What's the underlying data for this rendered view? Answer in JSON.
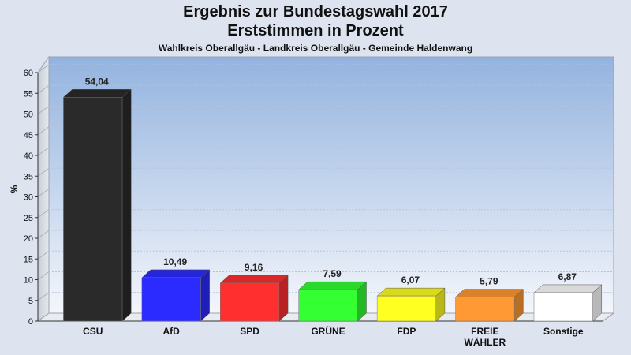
{
  "chart_data": {
    "type": "bar",
    "title": "Ergebnis zur Bundestagswahl 2017",
    "subtitle_line": "Erststimmen in Prozent",
    "subtitle": "Wahlkreis Oberallgäu - Landkreis Oberallgäu - Gemeinde Haldenwang",
    "ylabel": "%",
    "ylim": [
      0,
      60
    ],
    "yticks": [
      0,
      5,
      10,
      15,
      20,
      25,
      30,
      35,
      40,
      45,
      50,
      55,
      60
    ],
    "categories": [
      [
        "CSU"
      ],
      [
        "AfD"
      ],
      [
        "SPD"
      ],
      [
        "GRÜNE"
      ],
      [
        "FDP"
      ],
      [
        "FREIE",
        "WÄHLER"
      ],
      [
        "Sonstige"
      ]
    ],
    "values": [
      54.04,
      10.49,
      9.16,
      7.59,
      6.07,
      5.79,
      6.87
    ],
    "value_labels": [
      "54,04",
      "10,49",
      "9,16",
      "7,59",
      "6,07",
      "5,79",
      "6,87"
    ],
    "colors": [
      "#2a2a2a",
      "#2b2bff",
      "#ff2f2f",
      "#33ff33",
      "#ffff22",
      "#ff9933",
      "#ffffff"
    ],
    "grid": true
  }
}
